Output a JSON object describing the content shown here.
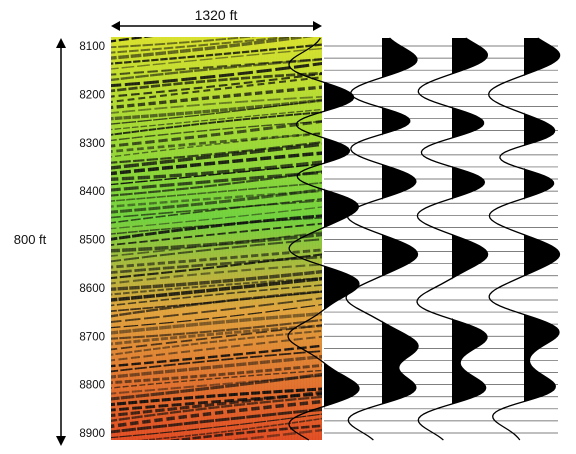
{
  "title": "",
  "width_label": "1320 ft",
  "height_label": "800 ft",
  "depth_ticks": [
    "8100",
    "8200",
    "8300",
    "8400",
    "8500",
    "8600",
    "8700",
    "8800",
    "8900"
  ],
  "colors": {
    "section_top": "#d8e02a",
    "section_middle": "#6fd13a",
    "section_lower": "#e0a23a",
    "section_bottom": "#e04a20",
    "wiggle_fill": "#000000",
    "grid_line": "#555555"
  },
  "trace_lobes": [
    [
      [
        "8140",
        -1
      ],
      [
        "8210",
        1
      ],
      [
        "8260",
        -1
      ],
      [
        "8320",
        1
      ],
      [
        "8365",
        -1
      ],
      [
        "8430",
        1
      ],
      [
        "8520",
        -1
      ],
      [
        "8590",
        1
      ],
      [
        "8700",
        -1
      ],
      [
        "8810",
        1
      ],
      [
        "8880",
        -1
      ]
    ],
    [
      [
        "8130",
        1
      ],
      [
        "8200",
        -1
      ],
      [
        "8255",
        1
      ],
      [
        "8310",
        -1
      ],
      [
        "8380",
        1
      ],
      [
        "8450",
        -1
      ],
      [
        "8530",
        1
      ],
      [
        "8620",
        -1
      ],
      [
        "8720",
        1
      ],
      [
        "8810",
        1
      ],
      [
        "8870",
        -1
      ]
    ],
    [
      [
        "8120",
        1
      ],
      [
        "8195",
        -1
      ],
      [
        "8260",
        1
      ],
      [
        "8320",
        -1
      ],
      [
        "8380",
        1
      ],
      [
        "8450",
        -1
      ],
      [
        "8530",
        1
      ],
      [
        "8630",
        -1
      ],
      [
        "8700",
        1
      ],
      [
        "8810",
        1
      ],
      [
        "8870",
        -1
      ]
    ],
    [
      [
        "8120",
        1
      ],
      [
        "8200",
        -1
      ],
      [
        "8280",
        1
      ],
      [
        "8330",
        -1
      ],
      [
        "8380",
        1
      ],
      [
        "8450",
        -1
      ],
      [
        "8530",
        1
      ],
      [
        "8620",
        -1
      ],
      [
        "8690",
        1
      ],
      [
        "8810",
        1
      ],
      [
        "8860",
        -1
      ]
    ]
  ]
}
